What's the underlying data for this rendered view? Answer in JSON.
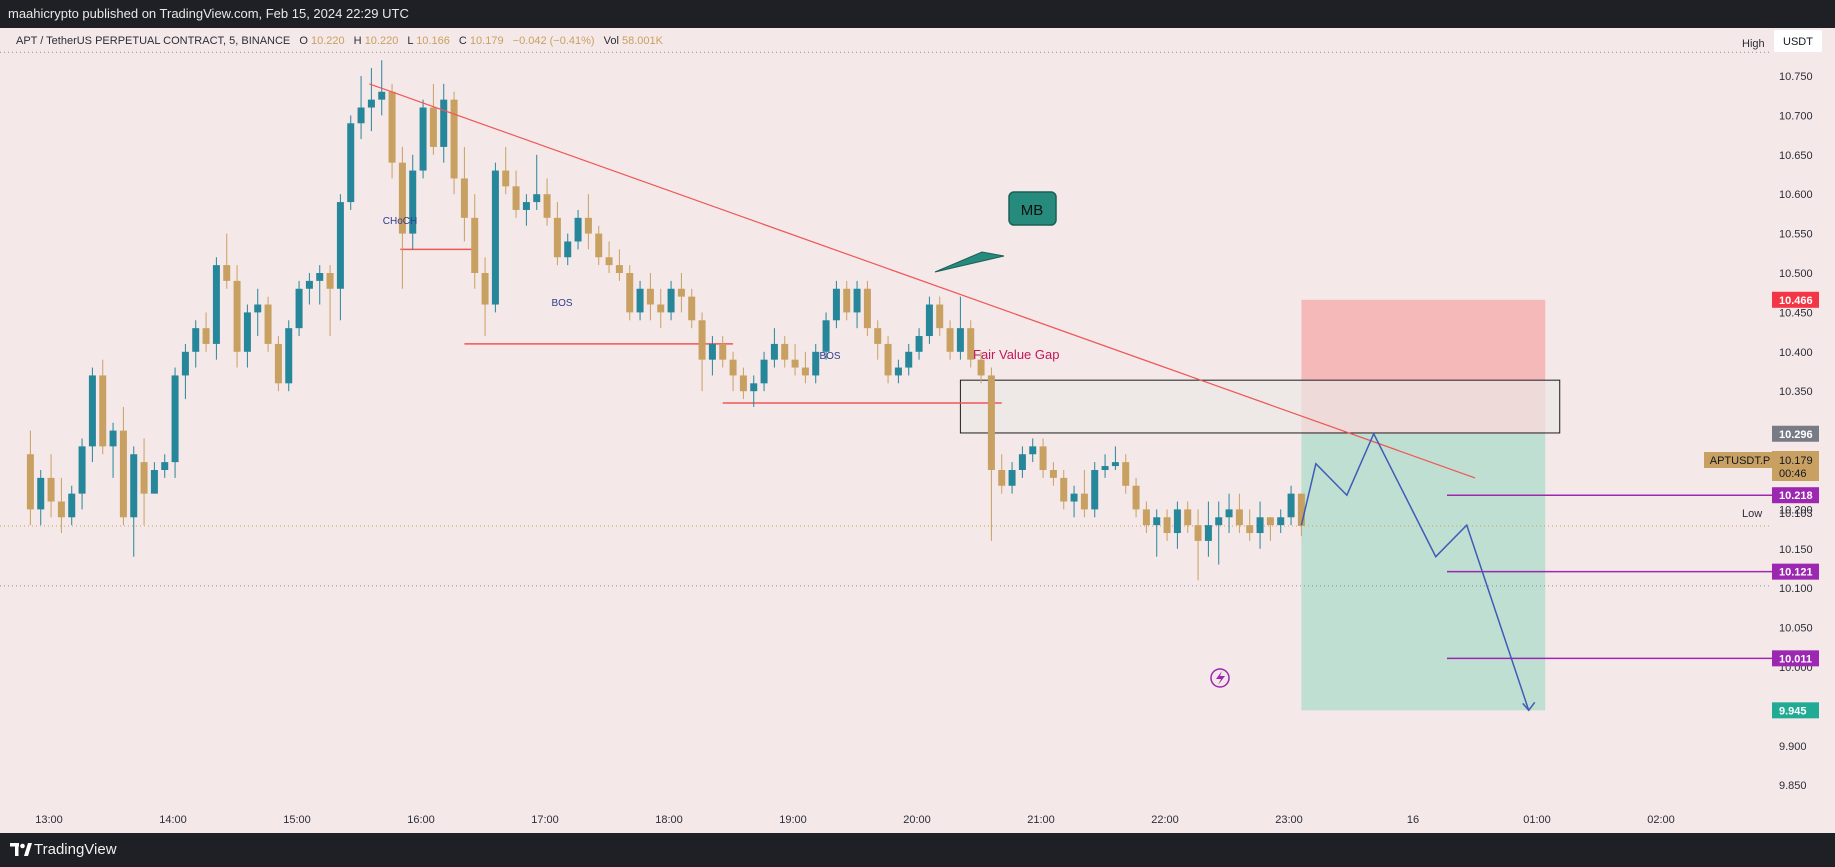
{
  "header": {
    "publisher_text": "maahicrypto published on TradingView.com, Feb 15, 2024 22:29 UTC"
  },
  "footer": {
    "brand": "TradingView"
  },
  "legend": {
    "symbol": "APT / TetherUS PERPETUAL CONTRACT, 5, BINANCE",
    "o_label": "O",
    "o_value": "10.220",
    "h_label": "H",
    "h_value": "10.220",
    "l_label": "L",
    "l_value": "10.166",
    "c_label": "C",
    "c_value": "10.179",
    "change": "−0.042 (−0.41%)",
    "vol_label": "Vol",
    "vol_value": "58.001K"
  },
  "price_scale": {
    "currency": "USDT",
    "high_label": "High",
    "low_label": "Low",
    "low_value": "10.103",
    "current_symbol": "APTUSDT.P",
    "current_price": "10.179",
    "countdown": "00:46",
    "tags": [
      {
        "value": "10.466",
        "color": "#f23645"
      },
      {
        "value": "10.296",
        "color": "#787b86"
      },
      {
        "value": "10.218",
        "color": "#9c27b0"
      },
      {
        "value": "10.121",
        "color": "#9c27b0"
      },
      {
        "value": "10.011",
        "color": "#9c27b0"
      },
      {
        "value": "9.945",
        "color": "#22ab94"
      }
    ]
  },
  "annotations": {
    "choch": "CHoCH",
    "bos_1": "BOS",
    "bos_2": "BOS",
    "fvg": "Fair Value Gap",
    "callout": "MB"
  },
  "colors": {
    "bull": "#26869a",
    "bear": "#c8a162",
    "trendline": "#f05656",
    "projection": "#3f5bb5",
    "level_line": "#9c27b0",
    "stop_zone": "#f5a9ab",
    "target_zone": "#a6dcc9",
    "callout_fill": "#268a7c"
  },
  "chart_data": {
    "type": "candlestick",
    "symbol": "APTUSDT.P",
    "timeframe": "5",
    "exchange": "BINANCE",
    "x_ticks": [
      "13:00",
      "14:00",
      "15:00",
      "16:00",
      "17:00",
      "18:00",
      "19:00",
      "20:00",
      "21:00",
      "22:00",
      "23:00",
      "16",
      "01:00",
      "02:00"
    ],
    "y_ticks": [
      "10.750",
      "10.700",
      "10.650",
      "10.600",
      "10.550",
      "10.500",
      "10.450",
      "10.400",
      "10.350",
      "10.300",
      "10.250",
      "10.200",
      "10.150",
      "10.100",
      "10.050",
      "10.000",
      "9.950",
      "9.900",
      "9.850"
    ],
    "ylim": [
      9.84,
      10.78
    ],
    "grid": false,
    "candles": [
      {
        "t": "12:51",
        "o": 10.27,
        "h": 10.3,
        "l": 10.18,
        "c": 10.2
      },
      {
        "t": "12:56",
        "o": 10.2,
        "h": 10.25,
        "l": 10.18,
        "c": 10.24
      },
      {
        "t": "13:01",
        "o": 10.24,
        "h": 10.27,
        "l": 10.19,
        "c": 10.21
      },
      {
        "t": "13:06",
        "o": 10.21,
        "h": 10.24,
        "l": 10.17,
        "c": 10.19
      },
      {
        "t": "13:11",
        "o": 10.19,
        "h": 10.23,
        "l": 10.18,
        "c": 10.22
      },
      {
        "t": "13:16",
        "o": 10.22,
        "h": 10.29,
        "l": 10.2,
        "c": 10.28
      },
      {
        "t": "13:21",
        "o": 10.28,
        "h": 10.38,
        "l": 10.26,
        "c": 10.37
      },
      {
        "t": "13:26",
        "o": 10.37,
        "h": 10.39,
        "l": 10.27,
        "c": 10.28
      },
      {
        "t": "13:31",
        "o": 10.28,
        "h": 10.31,
        "l": 10.24,
        "c": 10.3
      },
      {
        "t": "13:36",
        "o": 10.3,
        "h": 10.33,
        "l": 10.18,
        "c": 10.19
      },
      {
        "t": "13:41",
        "o": 10.19,
        "h": 10.28,
        "l": 10.14,
        "c": 10.27
      },
      {
        "t": "13:46",
        "o": 10.26,
        "h": 10.29,
        "l": 10.18,
        "c": 10.22
      },
      {
        "t": "13:51",
        "o": 10.22,
        "h": 10.26,
        "l": 10.22,
        "c": 10.25
      },
      {
        "t": "13:56",
        "o": 10.25,
        "h": 10.27,
        "l": 10.24,
        "c": 10.26
      },
      {
        "t": "14:01",
        "o": 10.26,
        "h": 10.38,
        "l": 10.24,
        "c": 10.37
      },
      {
        "t": "14:06",
        "o": 10.37,
        "h": 10.41,
        "l": 10.34,
        "c": 10.4
      },
      {
        "t": "14:11",
        "o": 10.4,
        "h": 10.44,
        "l": 10.38,
        "c": 10.43
      },
      {
        "t": "14:16",
        "o": 10.43,
        "h": 10.45,
        "l": 10.4,
        "c": 10.41
      },
      {
        "t": "14:21",
        "o": 10.41,
        "h": 10.52,
        "l": 10.39,
        "c": 10.51
      },
      {
        "t": "14:26",
        "o": 10.51,
        "h": 10.55,
        "l": 10.48,
        "c": 10.49
      },
      {
        "t": "14:31",
        "o": 10.49,
        "h": 10.51,
        "l": 10.38,
        "c": 10.4
      },
      {
        "t": "14:36",
        "o": 10.4,
        "h": 10.46,
        "l": 10.38,
        "c": 10.45
      },
      {
        "t": "14:41",
        "o": 10.45,
        "h": 10.48,
        "l": 10.42,
        "c": 10.46
      },
      {
        "t": "14:46",
        "o": 10.46,
        "h": 10.47,
        "l": 10.4,
        "c": 10.41
      },
      {
        "t": "14:51",
        "o": 10.41,
        "h": 10.42,
        "l": 10.35,
        "c": 10.36
      },
      {
        "t": "14:56",
        "o": 10.36,
        "h": 10.44,
        "l": 10.35,
        "c": 10.43
      },
      {
        "t": "15:01",
        "o": 10.43,
        "h": 10.49,
        "l": 10.42,
        "c": 10.48
      },
      {
        "t": "15:06",
        "o": 10.48,
        "h": 10.5,
        "l": 10.46,
        "c": 10.49
      },
      {
        "t": "15:11",
        "o": 10.49,
        "h": 10.51,
        "l": 10.46,
        "c": 10.5
      },
      {
        "t": "15:16",
        "o": 10.5,
        "h": 10.51,
        "l": 10.42,
        "c": 10.48
      },
      {
        "t": "15:21",
        "o": 10.48,
        "h": 10.6,
        "l": 10.44,
        "c": 10.59
      },
      {
        "t": "15:26",
        "o": 10.59,
        "h": 10.7,
        "l": 10.58,
        "c": 10.69
      },
      {
        "t": "15:31",
        "o": 10.69,
        "h": 10.75,
        "l": 10.67,
        "c": 10.71
      },
      {
        "t": "15:36",
        "o": 10.71,
        "h": 10.76,
        "l": 10.68,
        "c": 10.72
      },
      {
        "t": "15:41",
        "o": 10.72,
        "h": 10.77,
        "l": 10.7,
        "c": 10.73
      },
      {
        "t": "15:46",
        "o": 10.73,
        "h": 10.74,
        "l": 10.62,
        "c": 10.64
      },
      {
        "t": "15:51",
        "o": 10.64,
        "h": 10.66,
        "l": 10.48,
        "c": 10.55
      },
      {
        "t": "15:56",
        "o": 10.55,
        "h": 10.65,
        "l": 10.53,
        "c": 10.63
      },
      {
        "t": "16:01",
        "o": 10.63,
        "h": 10.72,
        "l": 10.62,
        "c": 10.71
      },
      {
        "t": "16:06",
        "o": 10.71,
        "h": 10.74,
        "l": 10.65,
        "c": 10.66
      },
      {
        "t": "16:11",
        "o": 10.66,
        "h": 10.74,
        "l": 10.64,
        "c": 10.72
      },
      {
        "t": "16:16",
        "o": 10.72,
        "h": 10.73,
        "l": 10.6,
        "c": 10.62
      },
      {
        "t": "16:21",
        "o": 10.62,
        "h": 10.66,
        "l": 10.54,
        "c": 10.57
      },
      {
        "t": "16:26",
        "o": 10.57,
        "h": 10.6,
        "l": 10.48,
        "c": 10.5
      },
      {
        "t": "16:31",
        "o": 10.5,
        "h": 10.52,
        "l": 10.42,
        "c": 10.46
      },
      {
        "t": "16:36",
        "o": 10.46,
        "h": 10.64,
        "l": 10.45,
        "c": 10.63
      },
      {
        "t": "16:41",
        "o": 10.63,
        "h": 10.66,
        "l": 10.6,
        "c": 10.61
      },
      {
        "t": "16:46",
        "o": 10.61,
        "h": 10.63,
        "l": 10.57,
        "c": 10.58
      },
      {
        "t": "16:51",
        "o": 10.58,
        "h": 10.6,
        "l": 10.56,
        "c": 10.59
      },
      {
        "t": "16:56",
        "o": 10.59,
        "h": 10.65,
        "l": 10.58,
        "c": 10.6
      },
      {
        "t": "17:01",
        "o": 10.6,
        "h": 10.62,
        "l": 10.56,
        "c": 10.57
      },
      {
        "t": "17:06",
        "o": 10.57,
        "h": 10.59,
        "l": 10.51,
        "c": 10.52
      },
      {
        "t": "17:11",
        "o": 10.52,
        "h": 10.55,
        "l": 10.51,
        "c": 10.54
      },
      {
        "t": "17:16",
        "o": 10.54,
        "h": 10.58,
        "l": 10.53,
        "c": 10.57
      },
      {
        "t": "17:21",
        "o": 10.57,
        "h": 10.6,
        "l": 10.53,
        "c": 10.55
      },
      {
        "t": "17:26",
        "o": 10.55,
        "h": 10.56,
        "l": 10.51,
        "c": 10.52
      },
      {
        "t": "17:31",
        "o": 10.52,
        "h": 10.54,
        "l": 10.5,
        "c": 10.51
      },
      {
        "t": "17:36",
        "o": 10.51,
        "h": 10.53,
        "l": 10.49,
        "c": 10.5
      },
      {
        "t": "17:41",
        "o": 10.5,
        "h": 10.51,
        "l": 10.44,
        "c": 10.45
      },
      {
        "t": "17:46",
        "o": 10.45,
        "h": 10.49,
        "l": 10.44,
        "c": 10.48
      },
      {
        "t": "17:51",
        "o": 10.48,
        "h": 10.5,
        "l": 10.44,
        "c": 10.46
      },
      {
        "t": "17:56",
        "o": 10.46,
        "h": 10.48,
        "l": 10.43,
        "c": 10.45
      },
      {
        "t": "18:01",
        "o": 10.45,
        "h": 10.49,
        "l": 10.44,
        "c": 10.48
      },
      {
        "t": "18:06",
        "o": 10.48,
        "h": 10.5,
        "l": 10.45,
        "c": 10.47
      },
      {
        "t": "18:11",
        "o": 10.47,
        "h": 10.48,
        "l": 10.43,
        "c": 10.44
      },
      {
        "t": "18:16",
        "o": 10.44,
        "h": 10.45,
        "l": 10.35,
        "c": 10.39
      },
      {
        "t": "18:21",
        "o": 10.39,
        "h": 10.42,
        "l": 10.37,
        "c": 10.41
      },
      {
        "t": "18:26",
        "o": 10.41,
        "h": 10.42,
        "l": 10.38,
        "c": 10.39
      },
      {
        "t": "18:31",
        "o": 10.39,
        "h": 10.4,
        "l": 10.35,
        "c": 10.37
      },
      {
        "t": "18:36",
        "o": 10.37,
        "h": 10.38,
        "l": 10.34,
        "c": 10.35
      },
      {
        "t": "18:41",
        "o": 10.35,
        "h": 10.37,
        "l": 10.33,
        "c": 10.36
      },
      {
        "t": "18:46",
        "o": 10.36,
        "h": 10.4,
        "l": 10.35,
        "c": 10.39
      },
      {
        "t": "18:51",
        "o": 10.39,
        "h": 10.43,
        "l": 10.38,
        "c": 10.41
      },
      {
        "t": "18:56",
        "o": 10.41,
        "h": 10.42,
        "l": 10.38,
        "c": 10.39
      },
      {
        "t": "19:01",
        "o": 10.39,
        "h": 10.41,
        "l": 10.37,
        "c": 10.38
      },
      {
        "t": "19:06",
        "o": 10.38,
        "h": 10.4,
        "l": 10.36,
        "c": 10.37
      },
      {
        "t": "19:11",
        "o": 10.37,
        "h": 10.41,
        "l": 10.36,
        "c": 10.4
      },
      {
        "t": "19:16",
        "o": 10.4,
        "h": 10.45,
        "l": 10.39,
        "c": 10.44
      },
      {
        "t": "19:21",
        "o": 10.44,
        "h": 10.49,
        "l": 10.43,
        "c": 10.48
      },
      {
        "t": "19:26",
        "o": 10.48,
        "h": 10.49,
        "l": 10.44,
        "c": 10.45
      },
      {
        "t": "19:31",
        "o": 10.45,
        "h": 10.49,
        "l": 10.43,
        "c": 10.48
      },
      {
        "t": "19:36",
        "o": 10.48,
        "h": 10.49,
        "l": 10.42,
        "c": 10.43
      },
      {
        "t": "19:41",
        "o": 10.43,
        "h": 10.44,
        "l": 10.39,
        "c": 10.41
      },
      {
        "t": "19:46",
        "o": 10.41,
        "h": 10.42,
        "l": 10.36,
        "c": 10.37
      },
      {
        "t": "19:51",
        "o": 10.37,
        "h": 10.39,
        "l": 10.36,
        "c": 10.38
      },
      {
        "t": "19:56",
        "o": 10.38,
        "h": 10.41,
        "l": 10.37,
        "c": 10.4
      },
      {
        "t": "20:01",
        "o": 10.4,
        "h": 10.43,
        "l": 10.39,
        "c": 10.42
      },
      {
        "t": "20:06",
        "o": 10.42,
        "h": 10.47,
        "l": 10.41,
        "c": 10.46
      },
      {
        "t": "20:11",
        "o": 10.46,
        "h": 10.47,
        "l": 10.42,
        "c": 10.43
      },
      {
        "t": "20:16",
        "o": 10.43,
        "h": 10.44,
        "l": 10.39,
        "c": 10.4
      },
      {
        "t": "20:21",
        "o": 10.4,
        "h": 10.47,
        "l": 10.39,
        "c": 10.43
      },
      {
        "t": "20:26",
        "o": 10.43,
        "h": 10.44,
        "l": 10.38,
        "c": 10.39
      },
      {
        "t": "20:31",
        "o": 10.39,
        "h": 10.4,
        "l": 10.36,
        "c": 10.37
      },
      {
        "t": "20:36",
        "o": 10.37,
        "h": 10.38,
        "l": 10.16,
        "c": 10.25
      },
      {
        "t": "20:41",
        "o": 10.25,
        "h": 10.27,
        "l": 10.22,
        "c": 10.23
      },
      {
        "t": "20:46",
        "o": 10.23,
        "h": 10.26,
        "l": 10.22,
        "c": 10.25
      },
      {
        "t": "20:51",
        "o": 10.25,
        "h": 10.28,
        "l": 10.24,
        "c": 10.27
      },
      {
        "t": "20:56",
        "o": 10.27,
        "h": 10.29,
        "l": 10.26,
        "c": 10.28
      },
      {
        "t": "21:01",
        "o": 10.28,
        "h": 10.29,
        "l": 10.24,
        "c": 10.25
      },
      {
        "t": "21:06",
        "o": 10.25,
        "h": 10.26,
        "l": 10.23,
        "c": 10.24
      },
      {
        "t": "21:11",
        "o": 10.24,
        "h": 10.25,
        "l": 10.2,
        "c": 10.21
      },
      {
        "t": "21:16",
        "o": 10.21,
        "h": 10.23,
        "l": 10.19,
        "c": 10.22
      },
      {
        "t": "21:21",
        "o": 10.22,
        "h": 10.25,
        "l": 10.19,
        "c": 10.2
      },
      {
        "t": "21:26",
        "o": 10.2,
        "h": 10.26,
        "l": 10.19,
        "c": 10.25
      },
      {
        "t": "21:31",
        "o": 10.25,
        "h": 10.27,
        "l": 10.24,
        "c": 10.255
      },
      {
        "t": "21:36",
        "o": 10.255,
        "h": 10.28,
        "l": 10.25,
        "c": 10.26
      },
      {
        "t": "21:41",
        "o": 10.26,
        "h": 10.27,
        "l": 10.22,
        "c": 10.23
      },
      {
        "t": "21:46",
        "o": 10.23,
        "h": 10.24,
        "l": 10.19,
        "c": 10.2
      },
      {
        "t": "21:51",
        "o": 10.2,
        "h": 10.21,
        "l": 10.17,
        "c": 10.18
      },
      {
        "t": "21:56",
        "o": 10.18,
        "h": 10.2,
        "l": 10.14,
        "c": 10.19
      },
      {
        "t": "22:01",
        "o": 10.19,
        "h": 10.2,
        "l": 10.16,
        "c": 10.17
      },
      {
        "t": "22:06",
        "o": 10.17,
        "h": 10.21,
        "l": 10.15,
        "c": 10.2
      },
      {
        "t": "22:11",
        "o": 10.2,
        "h": 10.21,
        "l": 10.17,
        "c": 10.18
      },
      {
        "t": "22:16",
        "o": 10.18,
        "h": 10.2,
        "l": 10.11,
        "c": 10.16
      },
      {
        "t": "22:21",
        "o": 10.16,
        "h": 10.21,
        "l": 10.14,
        "c": 10.18
      },
      {
        "t": "22:26",
        "o": 10.18,
        "h": 10.21,
        "l": 10.13,
        "c": 10.19
      },
      {
        "t": "22:31",
        "o": 10.19,
        "h": 10.22,
        "l": 10.17,
        "c": 10.2
      },
      {
        "t": "22:36",
        "o": 10.2,
        "h": 10.22,
        "l": 10.17,
        "c": 10.18
      },
      {
        "t": "22:41",
        "o": 10.18,
        "h": 10.2,
        "l": 10.16,
        "c": 10.17
      },
      {
        "t": "22:46",
        "o": 10.17,
        "h": 10.21,
        "l": 10.15,
        "c": 10.19
      },
      {
        "t": "22:51",
        "o": 10.19,
        "h": 10.19,
        "l": 10.16,
        "c": 10.18
      },
      {
        "t": "22:56",
        "o": 10.18,
        "h": 10.2,
        "l": 10.17,
        "c": 10.19
      },
      {
        "t": "23:01",
        "o": 10.19,
        "h": 10.23,
        "l": 10.18,
        "c": 10.22
      },
      {
        "t": "23:06",
        "o": 10.22,
        "h": 10.22,
        "l": 10.166,
        "c": 10.179
      }
    ],
    "trendline": {
      "from": {
        "t": "15:35",
        "p": 10.74
      },
      "to": {
        "t": "00:30",
        "p": 10.24
      }
    },
    "choch_level": {
      "from": "15:50",
      "to": "16:25",
      "p": 10.53
    },
    "bos_1_level": {
      "from": "16:21",
      "to": "18:31",
      "p": 10.41
    },
    "bos_2_level": {
      "from": "18:26",
      "to": "20:41",
      "p": 10.335
    },
    "fvg_zone": {
      "from": "20:21",
      "to": "01:11",
      "top": 10.364,
      "bottom": 10.297
    },
    "position": {
      "from": "23:06",
      "to": "01:04",
      "stop": 10.466,
      "entry": 10.296,
      "target": 9.945
    },
    "target_levels": [
      10.218,
      10.121,
      10.011
    ],
    "projection_path": [
      {
        "t": "23:06",
        "p": 10.18
      },
      {
        "t": "23:13",
        "p": 10.258
      },
      {
        "t": "23:28",
        "p": 10.218
      },
      {
        "t": "23:41",
        "p": 10.296
      },
      {
        "t": "00:11",
        "p": 10.14
      },
      {
        "t": "00:26",
        "p": 10.18
      },
      {
        "t": "00:56",
        "p": 9.945
      }
    ]
  }
}
